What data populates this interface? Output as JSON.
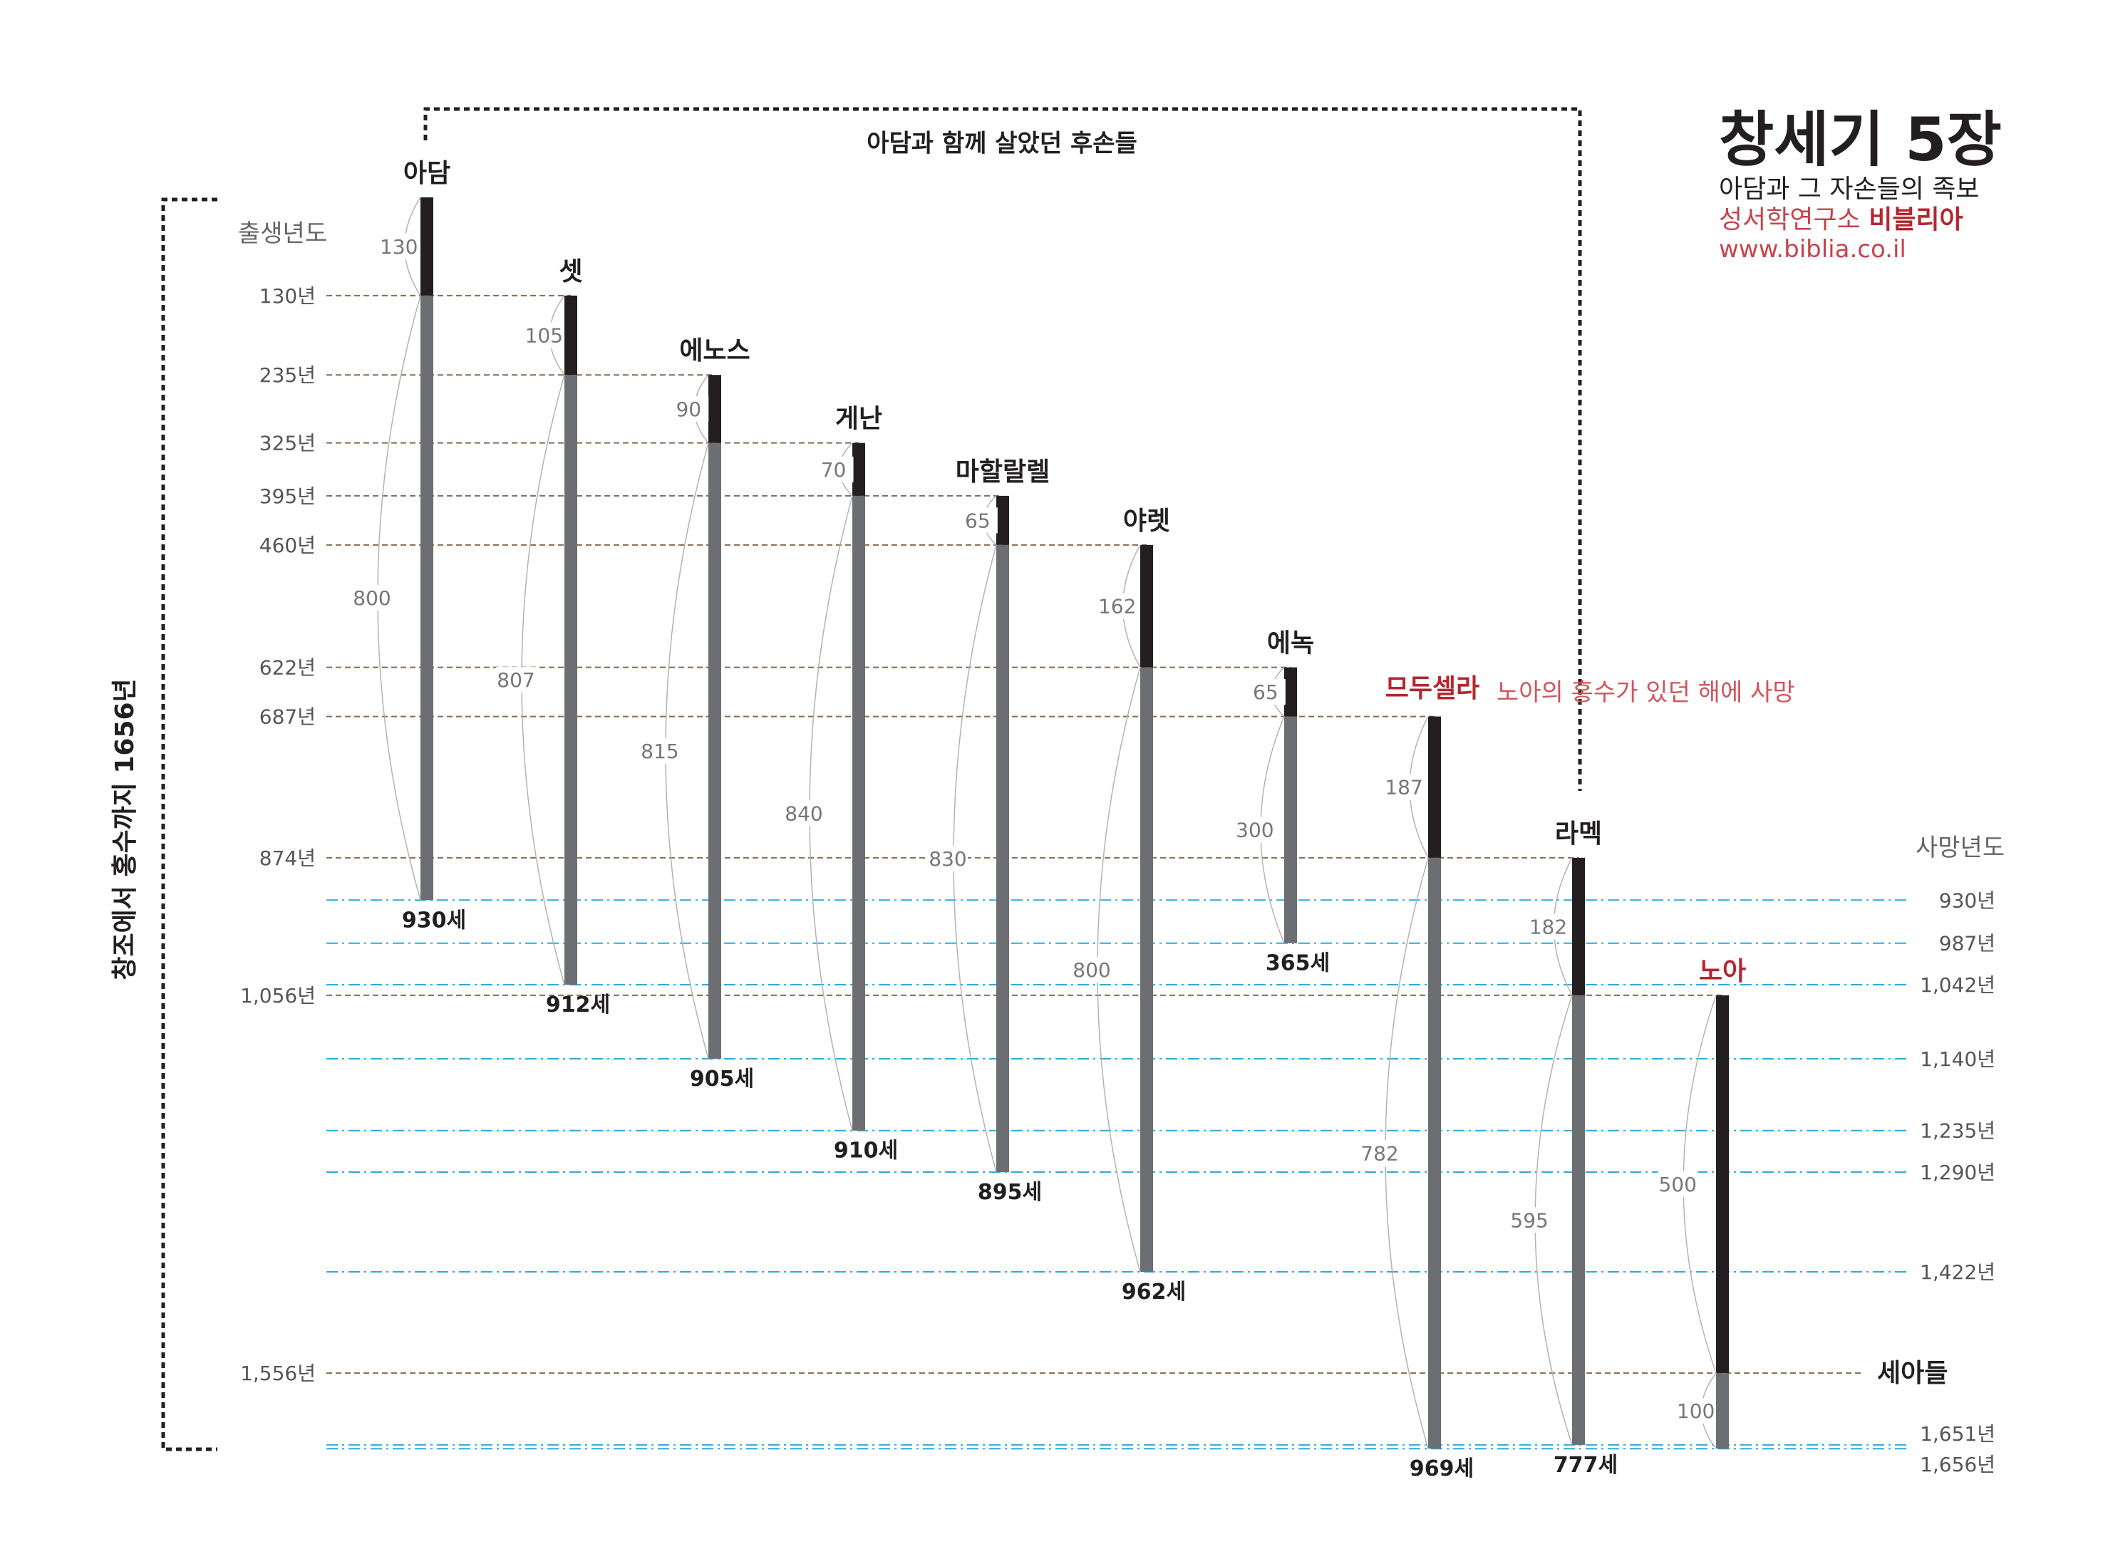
{
  "title": {
    "main": "창세기 5장",
    "subtitle": "아담과 그 자손들의 족보",
    "org_prefix": "성서학연구소",
    "org_name": "비블리아",
    "url": "www.biblia.co.il"
  },
  "labels": {
    "side_bracket": "창조에서 홍수까지 1656년",
    "top_bracket": "아담과 함께 살았던 후손들",
    "birth_year_heading": "출생년도",
    "death_year_heading": "사망년도",
    "flood_note": "노아의 홍수가 있던 해에 사망",
    "sons": "세아들"
  },
  "colors": {
    "before_son": "#231f20",
    "after_son": "#6d6e71",
    "birth_line": "#8b6a4e",
    "death_line": "#29abe2",
    "highlight": "#b5262e",
    "arc": "#b3b3b3"
  },
  "birth_year_labels": [
    "130년",
    "235년",
    "325년",
    "395년",
    "460년",
    "622년",
    "687년",
    "874년",
    "1,056년",
    "1,556년"
  ],
  "death_year_labels": [
    "930년",
    "987년",
    "1,042년",
    "1,140년",
    "1,235년",
    "1,290년",
    "1,422년",
    "1,651년",
    "1,656년"
  ],
  "chart_data": {
    "type": "timeline",
    "unit": "years from creation",
    "range": [
      0,
      1656
    ],
    "people": [
      {
        "name": "아담",
        "birth": 0,
        "age_at_son": 130,
        "remaining": 800,
        "lifespan": 930,
        "lifespan_label": "930세",
        "highlight": false
      },
      {
        "name": "셋",
        "birth": 130,
        "age_at_son": 105,
        "remaining": 807,
        "lifespan": 912,
        "lifespan_label": "912세",
        "highlight": false
      },
      {
        "name": "에노스",
        "birth": 235,
        "age_at_son": 90,
        "remaining": 815,
        "lifespan": 905,
        "lifespan_label": "905세",
        "highlight": false
      },
      {
        "name": "게난",
        "birth": 325,
        "age_at_son": 70,
        "remaining": 840,
        "lifespan": 910,
        "lifespan_label": "910세",
        "highlight": false
      },
      {
        "name": "마할랄렐",
        "birth": 395,
        "age_at_son": 65,
        "remaining": 830,
        "lifespan": 895,
        "lifespan_label": "895세",
        "highlight": false
      },
      {
        "name": "야렛",
        "birth": 460,
        "age_at_son": 162,
        "remaining": 800,
        "lifespan": 962,
        "lifespan_label": "962세",
        "highlight": false
      },
      {
        "name": "에녹",
        "birth": 622,
        "age_at_son": 65,
        "remaining": 300,
        "lifespan": 365,
        "lifespan_label": "365세",
        "highlight": false
      },
      {
        "name": "므두셀라",
        "birth": 687,
        "age_at_son": 187,
        "remaining": 782,
        "lifespan": 969,
        "lifespan_label": "969세",
        "highlight": true
      },
      {
        "name": "라멕",
        "birth": 874,
        "age_at_son": 182,
        "remaining": 595,
        "lifespan": 777,
        "lifespan_label": "777세",
        "highlight": false
      },
      {
        "name": "노아",
        "birth": 1056,
        "age_at_son": 500,
        "remaining": 100,
        "lifespan": 600,
        "lifespan_label": "",
        "highlight": true
      }
    ],
    "birth_lines": [
      130,
      235,
      325,
      395,
      460,
      622,
      687,
      874,
      1056,
      1556
    ],
    "death_lines": [
      930,
      987,
      1042,
      1140,
      1235,
      1290,
      1422,
      1651,
      1656
    ]
  }
}
